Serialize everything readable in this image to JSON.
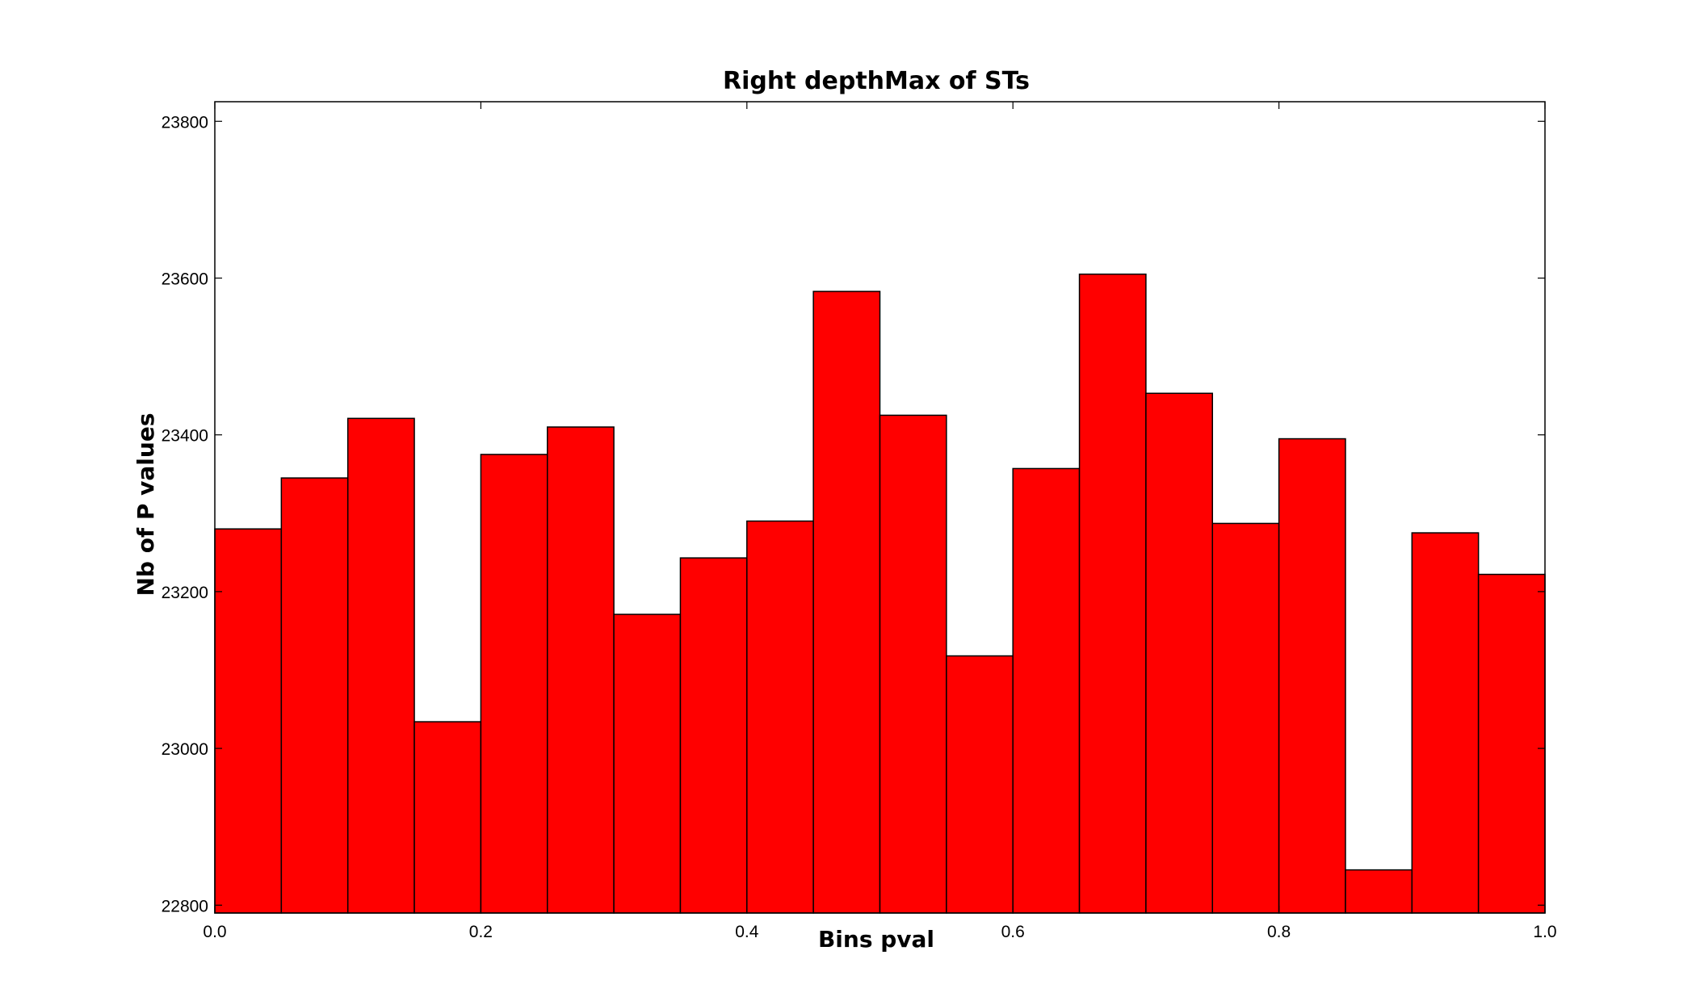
{
  "chart_data": {
    "type": "bar",
    "title": "Right depthMax of STs",
    "xlabel": "Bins pval",
    "ylabel": "Nb of P values",
    "bin_width": 0.05,
    "bins_start": [
      0.0,
      0.05,
      0.1,
      0.15,
      0.2,
      0.25,
      0.3,
      0.35,
      0.4,
      0.45,
      0.5,
      0.55,
      0.6,
      0.65,
      0.7,
      0.75,
      0.8,
      0.85,
      0.9,
      0.95
    ],
    "values": [
      23280,
      23345,
      23421,
      23034,
      23375,
      23410,
      23171,
      23243,
      23290,
      23583,
      23425,
      23118,
      23357,
      23605,
      23453,
      23287,
      23395,
      22845,
      23275,
      23222
    ],
    "xlim": [
      0.0,
      1.0
    ],
    "ylim": [
      22790,
      23825
    ],
    "xticks": [
      0.0,
      0.2,
      0.4,
      0.6,
      0.8,
      1.0
    ],
    "xtick_labels": [
      "0.0",
      "0.2",
      "0.4",
      "0.6",
      "0.8",
      "1.0"
    ],
    "yticks": [
      22800,
      23000,
      23200,
      23400,
      23600,
      23800
    ],
    "ytick_labels": [
      "22800",
      "23000",
      "23200",
      "23400",
      "23600",
      "23800"
    ],
    "bar_color": "#ff0000",
    "grid": false,
    "legend": "none"
  }
}
